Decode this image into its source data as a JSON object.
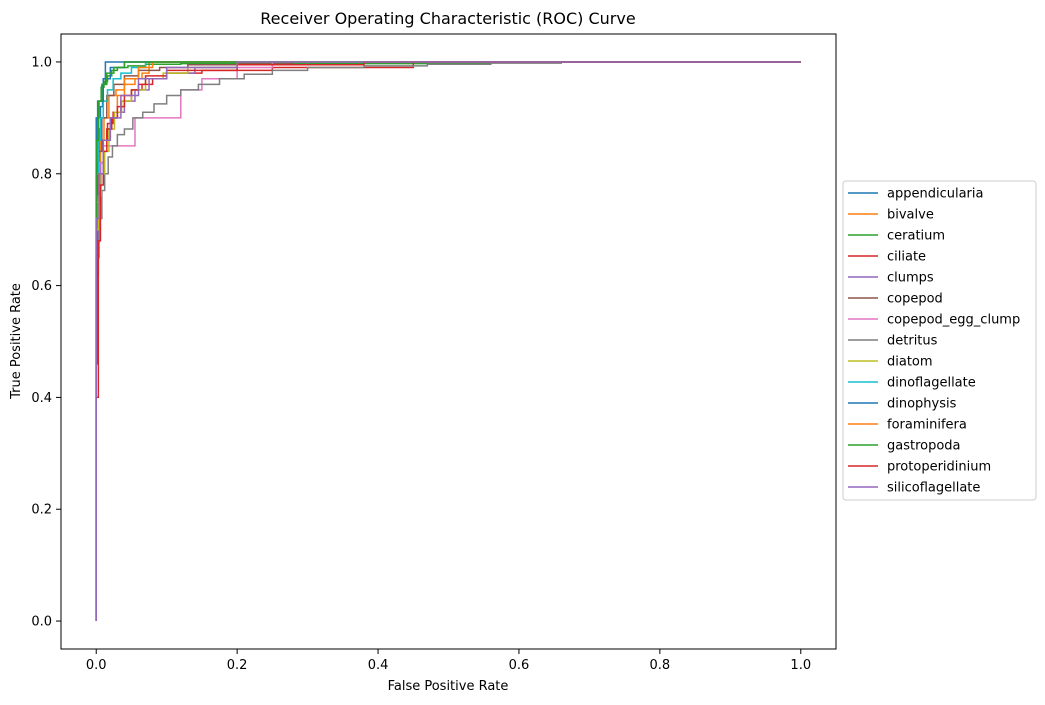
{
  "chart_data": {
    "type": "line",
    "title": "Receiver Operating Characteristic (ROC) Curve",
    "xlabel": "False Positive Rate",
    "ylabel": "True Positive Rate",
    "xlim": [
      -0.05,
      1.05
    ],
    "ylim": [
      -0.05,
      1.05
    ],
    "xticks": [
      0.0,
      0.2,
      0.4,
      0.6,
      0.8,
      1.0
    ],
    "xtick_labels": [
      "0.0",
      "0.2",
      "0.4",
      "0.6",
      "0.8",
      "1.0"
    ],
    "yticks": [
      0.0,
      0.2,
      0.4,
      0.6,
      0.8,
      1.0
    ],
    "ytick_labels": [
      "0.0",
      "0.2",
      "0.4",
      "0.6",
      "0.8",
      "1.0"
    ],
    "grid": false,
    "legend_position": "center-right, outside plot",
    "series": [
      {
        "name": "appendicularia",
        "color": "#1f77b4",
        "x": [
          0.0,
          0.0,
          0.002,
          0.002,
          0.004,
          0.004,
          0.006,
          0.006,
          0.009,
          0.009,
          0.013,
          0.013,
          0.02,
          0.04,
          0.06,
          1.0
        ],
        "y": [
          0.0,
          0.46,
          0.46,
          0.82,
          0.82,
          0.88,
          0.88,
          0.92,
          0.92,
          0.96,
          0.96,
          1.0,
          1.0,
          1.0,
          1.0,
          1.0
        ]
      },
      {
        "name": "bivalve",
        "color": "#ff7f0e",
        "x": [
          0.0,
          0.0,
          0.003,
          0.003,
          0.006,
          0.006,
          0.011,
          0.011,
          0.018,
          0.018,
          0.028,
          0.028,
          0.04,
          0.04,
          0.055,
          0.055,
          0.065,
          0.065,
          0.075,
          0.075,
          0.3,
          1.0
        ],
        "y": [
          0.0,
          0.7,
          0.7,
          0.8,
          0.8,
          0.86,
          0.86,
          0.9,
          0.9,
          0.94,
          0.94,
          0.95,
          0.95,
          0.96,
          0.96,
          0.97,
          0.97,
          0.98,
          0.98,
          1.0,
          1.0,
          1.0
        ]
      },
      {
        "name": "ceratium",
        "color": "#2ca02c",
        "x": [
          0.0,
          0.0,
          0.002,
          0.002,
          0.004,
          0.004,
          0.007,
          0.007,
          0.011,
          0.011,
          0.016,
          0.016,
          0.022,
          0.022,
          0.03,
          0.03,
          0.045,
          0.045,
          0.07,
          0.07,
          0.12,
          0.12,
          0.56,
          0.56,
          1.0
        ],
        "y": [
          0.0,
          0.82,
          0.82,
          0.9,
          0.9,
          0.93,
          0.93,
          0.955,
          0.955,
          0.965,
          0.965,
          0.975,
          0.975,
          0.985,
          0.985,
          0.99,
          0.99,
          0.993,
          0.993,
          0.996,
          0.996,
          0.997,
          0.997,
          1.0,
          1.0
        ]
      },
      {
        "name": "ciliate",
        "color": "#d62728",
        "x": [
          0.0,
          0.0,
          0.003,
          0.003,
          0.006,
          0.006,
          0.01,
          0.01,
          0.016,
          0.016,
          0.024,
          0.024,
          0.035,
          0.035,
          0.05,
          0.05,
          0.065,
          0.065,
          0.08,
          0.08,
          0.1,
          0.1,
          0.15,
          0.15,
          0.25,
          0.25,
          0.45,
          0.45,
          1.0
        ],
        "y": [
          0.0,
          0.62,
          0.62,
          0.76,
          0.76,
          0.82,
          0.82,
          0.86,
          0.86,
          0.89,
          0.89,
          0.91,
          0.91,
          0.93,
          0.93,
          0.95,
          0.95,
          0.96,
          0.96,
          0.97,
          0.97,
          0.98,
          0.98,
          0.985,
          0.985,
          0.99,
          0.99,
          1.0,
          1.0
        ]
      },
      {
        "name": "clumps",
        "color": "#9467bd",
        "x": [
          0.0,
          0.0,
          0.003,
          0.003,
          0.006,
          0.006,
          0.01,
          0.01,
          0.015,
          0.015,
          0.022,
          0.022,
          0.03,
          0.03,
          0.04,
          0.04,
          0.055,
          0.055,
          0.075,
          0.075,
          0.1,
          0.1,
          0.14,
          0.14,
          0.2,
          0.2,
          0.3,
          0.3,
          1.0
        ],
        "y": [
          0.0,
          0.66,
          0.66,
          0.76,
          0.76,
          0.82,
          0.82,
          0.86,
          0.86,
          0.88,
          0.88,
          0.9,
          0.9,
          0.91,
          0.91,
          0.93,
          0.93,
          0.95,
          0.95,
          0.97,
          0.97,
          0.98,
          0.98,
          0.99,
          0.99,
          0.995,
          0.995,
          1.0,
          1.0
        ]
      },
      {
        "name": "copepod",
        "color": "#8c564b",
        "x": [
          0.0,
          0.0,
          0.003,
          0.003,
          0.008,
          0.008,
          0.015,
          0.015,
          0.025,
          0.025,
          0.04,
          0.04,
          0.06,
          0.06,
          0.09,
          0.09,
          0.13,
          0.13,
          0.2,
          0.2,
          0.28,
          0.28,
          1.0
        ],
        "y": [
          0.0,
          0.72,
          0.72,
          0.84,
          0.84,
          0.9,
          0.9,
          0.94,
          0.94,
          0.96,
          0.96,
          0.975,
          0.975,
          0.985,
          0.985,
          0.99,
          0.99,
          0.995,
          0.995,
          0.998,
          0.998,
          1.0,
          1.0
        ]
      },
      {
        "name": "copepod_egg_clump",
        "color": "#e377c2",
        "x": [
          0.0,
          0.0,
          0.005,
          0.005,
          0.01,
          0.01,
          0.02,
          0.02,
          0.035,
          0.035,
          0.055,
          0.055,
          0.08,
          0.08,
          0.12,
          0.12,
          0.15,
          0.15,
          0.2,
          0.2,
          0.25,
          0.25,
          1.0
        ],
        "y": [
          0.0,
          0.8,
          0.8,
          0.82,
          0.82,
          0.85,
          0.85,
          0.85,
          0.85,
          0.85,
          0.85,
          0.9,
          0.9,
          0.9,
          0.9,
          0.95,
          0.95,
          0.97,
          0.97,
          0.99,
          0.99,
          1.0,
          1.0
        ]
      },
      {
        "name": "detritus",
        "color": "#7f7f7f",
        "x": [
          0.0,
          0.0,
          0.004,
          0.004,
          0.008,
          0.008,
          0.012,
          0.012,
          0.017,
          0.017,
          0.023,
          0.023,
          0.03,
          0.03,
          0.04,
          0.04,
          0.052,
          0.052,
          0.066,
          0.066,
          0.082,
          0.082,
          0.1,
          0.1,
          0.12,
          0.12,
          0.145,
          0.145,
          0.175,
          0.175,
          0.21,
          0.21,
          0.25,
          0.25,
          0.3,
          0.3,
          0.38,
          0.38,
          0.47,
          0.47,
          0.56,
          0.56,
          0.66,
          0.66,
          1.0
        ],
        "y": [
          0.0,
          0.65,
          0.65,
          0.72,
          0.72,
          0.77,
          0.77,
          0.8,
          0.8,
          0.83,
          0.83,
          0.85,
          0.85,
          0.87,
          0.87,
          0.88,
          0.88,
          0.9,
          0.9,
          0.91,
          0.91,
          0.925,
          0.925,
          0.94,
          0.94,
          0.95,
          0.95,
          0.96,
          0.96,
          0.97,
          0.97,
          0.978,
          0.978,
          0.985,
          0.985,
          0.99,
          0.99,
          0.993,
          0.993,
          0.996,
          0.996,
          0.998,
          0.998,
          1.0,
          1.0
        ]
      },
      {
        "name": "diatom",
        "color": "#bcbd22",
        "x": [
          0.0,
          0.0,
          0.003,
          0.003,
          0.007,
          0.007,
          0.012,
          0.012,
          0.018,
          0.018,
          0.026,
          0.026,
          0.036,
          0.036,
          0.05,
          0.05,
          0.07,
          0.07,
          0.095,
          0.095,
          0.13,
          0.13,
          0.2,
          0.2,
          1.0
        ],
        "y": [
          0.0,
          0.7,
          0.7,
          0.76,
          0.76,
          0.8,
          0.8,
          0.84,
          0.84,
          0.88,
          0.88,
          0.91,
          0.91,
          0.93,
          0.93,
          0.95,
          0.95,
          0.97,
          0.97,
          0.98,
          0.98,
          0.99,
          0.99,
          1.0,
          1.0
        ]
      },
      {
        "name": "dinoflagellate",
        "color": "#17becf",
        "x": [
          0.0,
          0.0,
          0.003,
          0.003,
          0.006,
          0.006,
          0.01,
          0.01,
          0.016,
          0.016,
          0.024,
          0.024,
          0.035,
          0.035,
          0.05,
          0.05,
          0.07,
          0.07,
          1.0
        ],
        "y": [
          0.0,
          0.8,
          0.8,
          0.86,
          0.86,
          0.9,
          0.9,
          0.93,
          0.93,
          0.95,
          0.95,
          0.97,
          0.97,
          0.98,
          0.98,
          0.99,
          0.99,
          1.0,
          1.0
        ]
      },
      {
        "name": "dinophysis",
        "color": "#1f77b4",
        "x": [
          0.0,
          0.0,
          0.002,
          0.002,
          0.01,
          0.01,
          0.02,
          0.02,
          0.04,
          0.04,
          1.0
        ],
        "y": [
          0.0,
          0.9,
          0.9,
          0.93,
          0.93,
          0.97,
          0.97,
          0.99,
          0.99,
          1.0,
          1.0
        ]
      },
      {
        "name": "foraminifera",
        "color": "#ff7f0e",
        "x": [
          0.0,
          0.0,
          0.004,
          0.004,
          0.01,
          0.01,
          0.02,
          0.02,
          0.03,
          0.03,
          0.04,
          0.04,
          0.06,
          0.06,
          0.08,
          0.08,
          1.0
        ],
        "y": [
          0.0,
          0.75,
          0.75,
          0.8,
          0.8,
          0.86,
          0.86,
          0.9,
          0.9,
          0.94,
          0.94,
          0.97,
          0.97,
          0.99,
          0.99,
          1.0,
          1.0
        ]
      },
      {
        "name": "gastropoda",
        "color": "#2ca02c",
        "x": [
          0.0,
          0.0,
          0.003,
          0.003,
          0.008,
          0.008,
          0.015,
          0.015,
          0.025,
          0.025,
          0.04,
          0.04,
          1.0
        ],
        "y": [
          0.0,
          0.86,
          0.86,
          0.93,
          0.93,
          0.96,
          0.96,
          0.98,
          0.98,
          0.99,
          0.99,
          1.0,
          1.0
        ]
      },
      {
        "name": "protoperidinium",
        "color": "#d62728",
        "x": [
          0.0,
          0.0,
          0.003,
          0.003,
          0.006,
          0.006,
          0.01,
          0.01,
          0.015,
          0.015,
          0.022,
          0.022,
          0.03,
          0.03,
          0.04,
          0.04,
          0.05,
          0.05,
          0.06,
          0.06,
          0.07,
          0.07,
          0.1,
          0.1,
          0.2,
          0.2,
          0.38,
          0.38,
          1.0
        ],
        "y": [
          0.0,
          0.4,
          0.4,
          0.68,
          0.68,
          0.78,
          0.78,
          0.84,
          0.84,
          0.88,
          0.88,
          0.9,
          0.9,
          0.92,
          0.92,
          0.94,
          0.94,
          0.95,
          0.95,
          0.96,
          0.96,
          0.975,
          0.975,
          0.985,
          0.985,
          0.995,
          0.995,
          1.0,
          1.0
        ]
      },
      {
        "name": "silicoflagellate",
        "color": "#9467bd",
        "x": [
          0.0,
          0.0,
          0.004,
          0.004,
          0.01,
          0.01,
          0.02,
          0.02,
          0.035,
          0.035,
          0.06,
          0.06,
          0.1,
          0.1,
          0.2,
          0.2,
          1.0
        ],
        "y": [
          0.0,
          0.72,
          0.72,
          0.8,
          0.8,
          0.86,
          0.86,
          0.9,
          0.9,
          0.94,
          0.94,
          0.97,
          0.97,
          0.99,
          0.99,
          1.0,
          1.0
        ]
      }
    ]
  }
}
